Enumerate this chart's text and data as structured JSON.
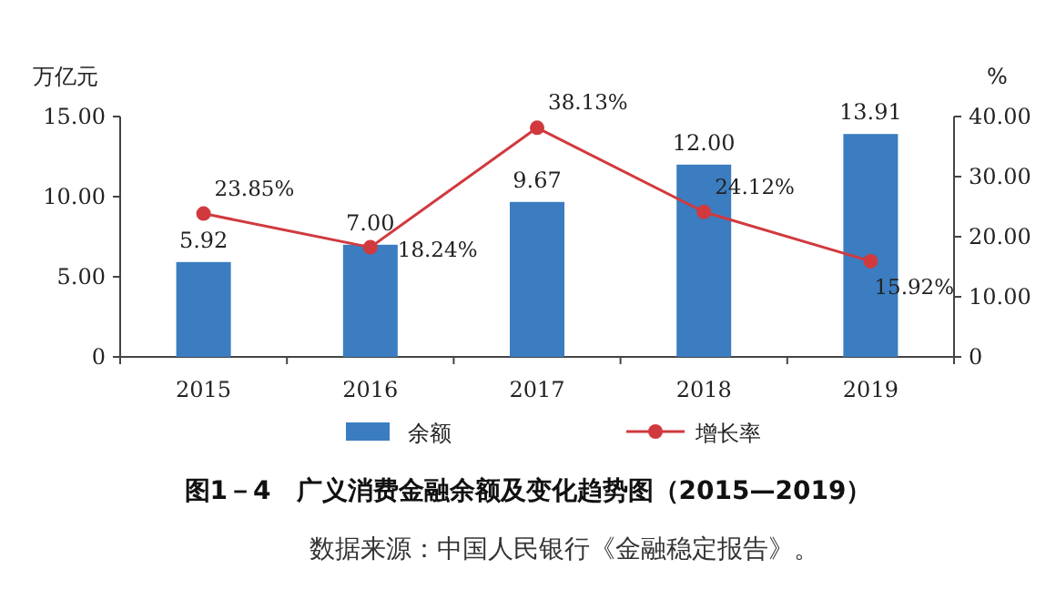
{
  "chart_data": {
    "type": "bar",
    "title": "图1－4　广义消费金融余额及变化趋势图（2015—2019）",
    "ylabel": "万亿元",
    "y2label": "%",
    "categories": [
      "2015",
      "2016",
      "2017",
      "2018",
      "2019"
    ],
    "series": [
      {
        "name": "余额",
        "color": "#3b7dc0",
        "values": [
          5.92,
          7.0,
          9.67,
          12.0,
          13.91
        ],
        "value_labels": [
          "5.92",
          "7.00",
          "9.67",
          "12.00",
          "13.91"
        ]
      },
      {
        "name": "增长率",
        "type": "line",
        "axis": "y2",
        "color": "#d03a3f",
        "marker": "circle",
        "values": [
          23.85,
          18.24,
          38.13,
          24.12,
          15.92
        ],
        "value_labels": [
          "23.85%",
          "18.24%",
          "38.13%",
          "24.12%",
          "15.92%"
        ]
      }
    ],
    "ylim": [
      0,
      15
    ],
    "yticks": [
      0,
      {
        "value": 5,
        "label": "5.00"
      },
      {
        "value": 10,
        "label": "10.00"
      },
      {
        "value": 15,
        "label": "15.00"
      }
    ],
    "y2lim": [
      0,
      40
    ],
    "y2ticks": [
      0,
      {
        "value": 10,
        "label": "10.00"
      },
      {
        "value": 20,
        "label": "20.00"
      },
      {
        "value": 30,
        "label": "30.00"
      },
      {
        "value": 40,
        "label": "40.00"
      }
    ],
    "legend": "bottom",
    "annotations": [
      "数据来源：中国人民银行《金融稳定报告》。"
    ]
  }
}
